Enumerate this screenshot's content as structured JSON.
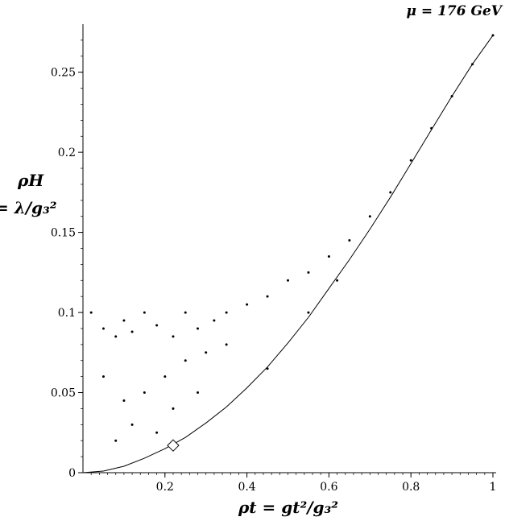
{
  "chart_data": {
    "type": "scatter",
    "title": "μ = 176 GeV",
    "ylabel_line1": "ρH",
    "ylabel_line2": "= λ/g₃²",
    "xlabel": "ρt = gt²/g₃²",
    "xlim": [
      0.0,
      1.0
    ],
    "ylim": [
      0.0,
      0.28
    ],
    "xticks": [
      0.2,
      0.4,
      0.6,
      0.8,
      1
    ],
    "xtick_labels": [
      "0.2",
      "0.4",
      "0.6",
      "0.8",
      "1"
    ],
    "yticks": [
      0,
      0.05,
      0.1,
      0.15,
      0.2,
      0.25
    ],
    "ytick_labels": [
      "0",
      "0.05",
      "0.1",
      "0.15",
      "0.2",
      "0.25"
    ],
    "grid": false,
    "series": [
      {
        "kind": "scatter",
        "points": [
          [
            0.02,
            0.1
          ],
          [
            0.05,
            0.09
          ],
          [
            0.08,
            0.085
          ],
          [
            0.1,
            0.095
          ],
          [
            0.12,
            0.088
          ],
          [
            0.15,
            0.1
          ],
          [
            0.18,
            0.092
          ],
          [
            0.22,
            0.085
          ],
          [
            0.25,
            0.1
          ],
          [
            0.28,
            0.09
          ],
          [
            0.32,
            0.095
          ],
          [
            0.35,
            0.1
          ],
          [
            0.4,
            0.105
          ],
          [
            0.45,
            0.11
          ],
          [
            0.5,
            0.12
          ],
          [
            0.55,
            0.125
          ],
          [
            0.6,
            0.135
          ],
          [
            0.65,
            0.145
          ],
          [
            0.7,
            0.16
          ],
          [
            0.75,
            0.175
          ],
          [
            0.8,
            0.195
          ],
          [
            0.85,
            0.215
          ],
          [
            0.9,
            0.235
          ],
          [
            0.95,
            0.255
          ],
          [
            1.0,
            0.273
          ],
          [
            0.05,
            0.06
          ],
          [
            0.1,
            0.045
          ],
          [
            0.15,
            0.05
          ],
          [
            0.2,
            0.06
          ],
          [
            0.25,
            0.07
          ],
          [
            0.3,
            0.075
          ],
          [
            0.35,
            0.08
          ],
          [
            0.45,
            0.065
          ],
          [
            0.55,
            0.1
          ],
          [
            0.62,
            0.12
          ],
          [
            0.08,
            0.02
          ],
          [
            0.12,
            0.03
          ],
          [
            0.18,
            0.025
          ],
          [
            0.22,
            0.04
          ],
          [
            0.28,
            0.05
          ]
        ]
      },
      {
        "kind": "line",
        "points": [
          [
            0.0,
            0.0
          ],
          [
            0.05,
            0.001
          ],
          [
            0.1,
            0.004
          ],
          [
            0.15,
            0.009
          ],
          [
            0.2,
            0.015
          ],
          [
            0.25,
            0.022
          ],
          [
            0.3,
            0.031
          ],
          [
            0.35,
            0.041
          ],
          [
            0.4,
            0.053
          ],
          [
            0.45,
            0.066
          ],
          [
            0.5,
            0.081
          ],
          [
            0.55,
            0.097
          ],
          [
            0.6,
            0.115
          ],
          [
            0.65,
            0.133
          ],
          [
            0.7,
            0.152
          ],
          [
            0.75,
            0.172
          ],
          [
            0.8,
            0.193
          ],
          [
            0.85,
            0.214
          ],
          [
            0.9,
            0.235
          ],
          [
            0.95,
            0.255
          ],
          [
            1.0,
            0.273
          ]
        ]
      },
      {
        "kind": "marker",
        "shape": "diamond",
        "points": [
          [
            0.22,
            0.017
          ]
        ]
      }
    ]
  }
}
